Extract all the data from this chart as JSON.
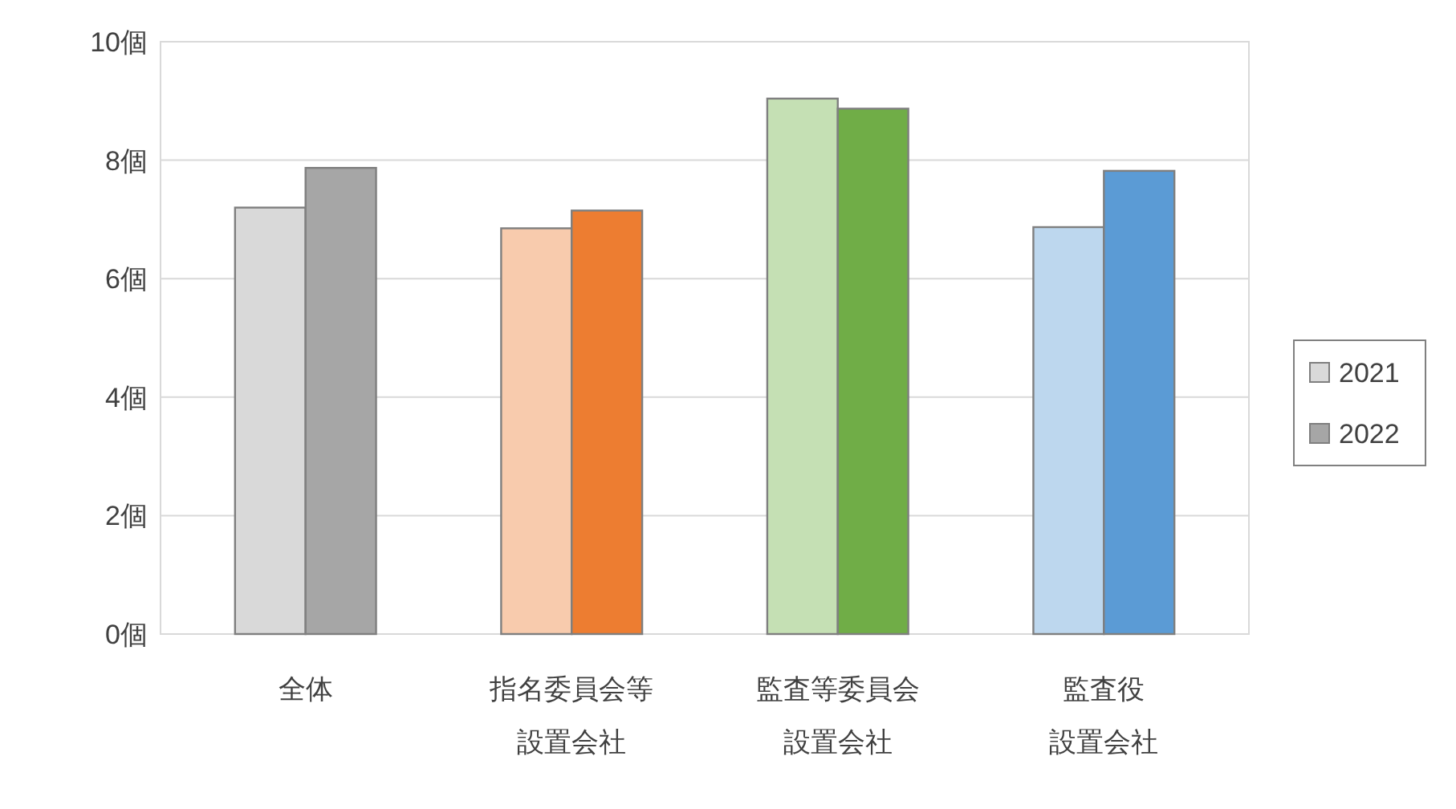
{
  "chart_data": {
    "type": "bar",
    "categories": [
      "全体",
      "指名委員会等設置会社",
      "監査等委員会設置会社",
      "監査役設置会社"
    ],
    "series": [
      {
        "name": "2021",
        "color": "#d9d9d9",
        "colors": [
          "#d9d9d9",
          "#f8cbad",
          "#c5e0b4",
          "#bdd7ee"
        ],
        "values": [
          7.2,
          6.85,
          9.04,
          6.87
        ]
      },
      {
        "name": "2022",
        "color": "#a6a6a6",
        "colors": [
          "#a6a6a6",
          "#ed7d31",
          "#70ad47",
          "#5b9bd5"
        ],
        "values": [
          7.87,
          7.15,
          8.87,
          7.82
        ]
      }
    ],
    "ylim": [
      0,
      10
    ],
    "yticks": [
      {
        "value": 0,
        "label": "0個"
      },
      {
        "value": 2,
        "label": "2個"
      },
      {
        "value": 4,
        "label": "4個"
      },
      {
        "value": 6,
        "label": "6個"
      },
      {
        "value": 8,
        "label": "8個"
      },
      {
        "value": 10,
        "label": "10個"
      }
    ],
    "grid": "y",
    "legend": "right"
  }
}
